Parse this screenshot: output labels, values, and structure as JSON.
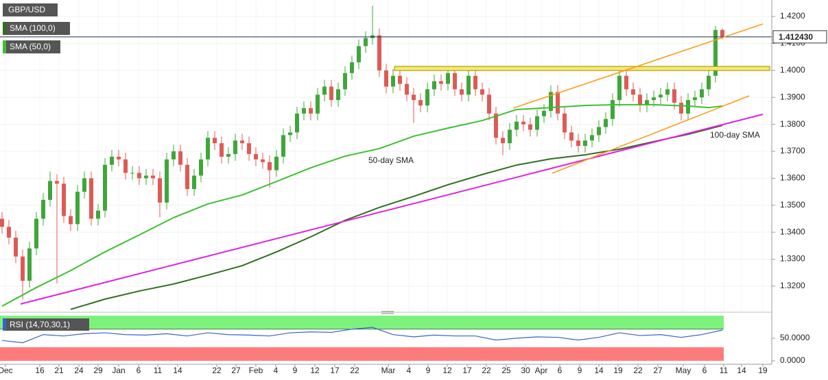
{
  "chart_data": [
    {
      "type": "candlestick",
      "symbol": "GBP/USD",
      "up_color": "#3fa63a",
      "down_color": "#de5b55",
      "xlim": [
        -0.3,
        112.2
      ],
      "ylim": [
        1.3106,
        1.4261
      ],
      "yticks": [
        {
          "value": 1.32,
          "label": "1.3200"
        },
        {
          "value": 1.33,
          "label": "1.3300"
        },
        {
          "value": 1.34,
          "label": "1.3400"
        },
        {
          "value": 1.35,
          "label": "1.3500"
        },
        {
          "value": 1.36,
          "label": "1.3600"
        },
        {
          "value": 1.37,
          "label": "1.3700"
        },
        {
          "value": 1.38,
          "label": "1.3800"
        },
        {
          "value": 1.39,
          "label": "1.3900"
        },
        {
          "value": 1.4,
          "label": "1.4000"
        },
        {
          "value": 1.41,
          "label": "1.4100"
        },
        {
          "value": 1.42,
          "label": "1.4200"
        }
      ],
      "xticks": [
        {
          "value": 0.5,
          "label": "Dec"
        },
        {
          "value": 5.5,
          "label": "16"
        },
        {
          "value": 8.3,
          "label": "21"
        },
        {
          "value": 11.2,
          "label": "24"
        },
        {
          "value": 14,
          "label": "29"
        },
        {
          "value": 17,
          "label": "Jan"
        },
        {
          "value": 19.9,
          "label": "6"
        },
        {
          "value": 22.7,
          "label": "11"
        },
        {
          "value": 25.6,
          "label": "14"
        },
        {
          "value": 31.3,
          "label": "22"
        },
        {
          "value": 34.1,
          "label": "27"
        },
        {
          "value": 37,
          "label": "Feb"
        },
        {
          "value": 39.9,
          "label": "4"
        },
        {
          "value": 42.7,
          "label": "9"
        },
        {
          "value": 45.6,
          "label": "12"
        },
        {
          "value": 48.5,
          "label": "17"
        },
        {
          "value": 51.4,
          "label": "22"
        },
        {
          "value": 56.3,
          "label": "Mar"
        },
        {
          "value": 59.3,
          "label": "4"
        },
        {
          "value": 62.1,
          "label": "9"
        },
        {
          "value": 64.9,
          "label": "12"
        },
        {
          "value": 67.8,
          "label": "17"
        },
        {
          "value": 70.6,
          "label": "22"
        },
        {
          "value": 73.5,
          "label": "25"
        },
        {
          "value": 76.3,
          "label": "30"
        },
        {
          "value": 78.6,
          "label": "Apr"
        },
        {
          "value": 81.3,
          "label": "6"
        },
        {
          "value": 84.2,
          "label": "9"
        },
        {
          "value": 87,
          "label": "14"
        },
        {
          "value": 89.8,
          "label": "19"
        },
        {
          "value": 92.7,
          "label": "22"
        },
        {
          "value": 95.6,
          "label": "27"
        },
        {
          "value": 99.3,
          "label": "May"
        },
        {
          "value": 102.4,
          "label": "6"
        },
        {
          "value": 105.2,
          "label": "11"
        },
        {
          "value": 107.8,
          "label": "14"
        },
        {
          "value": 110.9,
          "label": "19"
        }
      ],
      "last_price": {
        "value": 1.41243,
        "label": "1.412430"
      },
      "ohlc": [
        [
          1.345,
          1.3475,
          1.3395,
          1.342
        ],
        [
          1.342,
          1.3445,
          1.3355,
          1.338
        ],
        [
          1.338,
          1.3405,
          1.3285,
          1.331
        ],
        [
          1.331,
          1.3335,
          1.315,
          1.322
        ],
        [
          1.322,
          1.3365,
          1.3195,
          1.334
        ],
        [
          1.334,
          1.3475,
          1.3315,
          1.345
        ],
        [
          1.345,
          1.3545,
          1.3425,
          1.352
        ],
        [
          1.352,
          1.3625,
          1.3495,
          1.359
        ],
        [
          1.359,
          1.3615,
          1.321,
          1.358
        ],
        [
          1.358,
          1.3605,
          1.3435,
          1.346
        ],
        [
          1.346,
          1.3485,
          1.3405,
          1.343
        ],
        [
          1.343,
          1.3575,
          1.3405,
          1.355
        ],
        [
          1.355,
          1.3625,
          1.3525,
          1.36
        ],
        [
          1.36,
          1.3625,
          1.3425,
          1.345
        ],
        [
          1.345,
          1.3505,
          1.3425,
          1.348
        ],
        [
          1.348,
          1.3675,
          1.3455,
          1.365
        ],
        [
          1.365,
          1.3705,
          1.3625,
          1.368
        ],
        [
          1.368,
          1.3705,
          1.3645,
          1.367
        ],
        [
          1.367,
          1.3695,
          1.3595,
          1.362
        ],
        [
          1.362,
          1.3645,
          1.3595,
          1.362
        ],
        [
          1.362,
          1.3645,
          1.3575,
          1.36
        ],
        [
          1.36,
          1.3635,
          1.3575,
          1.361
        ],
        [
          1.361,
          1.3635,
          1.3575,
          1.36
        ],
        [
          1.36,
          1.3625,
          1.3455,
          1.351
        ],
        [
          1.351,
          1.3695,
          1.3485,
          1.367
        ],
        [
          1.367,
          1.3725,
          1.3645,
          1.37
        ],
        [
          1.37,
          1.3725,
          1.3625,
          1.365
        ],
        [
          1.365,
          1.3675,
          1.3535,
          1.356
        ],
        [
          1.356,
          1.3635,
          1.3535,
          1.361
        ],
        [
          1.361,
          1.3695,
          1.3585,
          1.367
        ],
        [
          1.367,
          1.3775,
          1.3645,
          1.375
        ],
        [
          1.375,
          1.3775,
          1.3705,
          1.373
        ],
        [
          1.373,
          1.3755,
          1.3655,
          1.368
        ],
        [
          1.368,
          1.3715,
          1.3655,
          1.369
        ],
        [
          1.369,
          1.3765,
          1.3665,
          1.374
        ],
        [
          1.374,
          1.3765,
          1.3705,
          1.373
        ],
        [
          1.373,
          1.3755,
          1.3665,
          1.369
        ],
        [
          1.369,
          1.3715,
          1.3645,
          1.367
        ],
        [
          1.367,
          1.3695,
          1.3635,
          1.366
        ],
        [
          1.366,
          1.3685,
          1.3565,
          1.363
        ],
        [
          1.363,
          1.3705,
          1.3605,
          1.368
        ],
        [
          1.368,
          1.3785,
          1.3655,
          1.376
        ],
        [
          1.376,
          1.3795,
          1.3735,
          1.377
        ],
        [
          1.377,
          1.3865,
          1.3745,
          1.384
        ],
        [
          1.384,
          1.3885,
          1.3815,
          1.386
        ],
        [
          1.386,
          1.3885,
          1.3815,
          1.384
        ],
        [
          1.384,
          1.3935,
          1.3815,
          1.391
        ],
        [
          1.391,
          1.3965,
          1.3885,
          1.394
        ],
        [
          1.394,
          1.3965,
          1.3865,
          1.389
        ],
        [
          1.389,
          1.3955,
          1.3865,
          1.393
        ],
        [
          1.393,
          1.4015,
          1.3905,
          1.399
        ],
        [
          1.399,
          1.4055,
          1.3965,
          1.403
        ],
        [
          1.403,
          1.4115,
          1.4005,
          1.409
        ],
        [
          1.409,
          1.4145,
          1.4065,
          1.412
        ],
        [
          1.412,
          1.424,
          1.4095,
          1.413
        ],
        [
          1.413,
          1.4155,
          1.3975,
          1.4
        ],
        [
          1.4,
          1.4025,
          1.3915,
          1.394
        ],
        [
          1.394,
          1.4005,
          1.3915,
          1.398
        ],
        [
          1.398,
          1.4005,
          1.3925,
          1.395
        ],
        [
          1.395,
          1.3975,
          1.3885,
          1.391
        ],
        [
          1.391,
          1.3935,
          1.3805,
          1.389
        ],
        [
          1.389,
          1.3915,
          1.3845,
          1.387
        ],
        [
          1.387,
          1.3955,
          1.3845,
          1.393
        ],
        [
          1.393,
          1.3985,
          1.3905,
          1.396
        ],
        [
          1.396,
          1.3985,
          1.3925,
          1.395
        ],
        [
          1.395,
          1.4015,
          1.3925,
          1.399
        ],
        [
          1.399,
          1.4015,
          1.3905,
          1.393
        ],
        [
          1.393,
          1.3955,
          1.3885,
          1.391
        ],
        [
          1.391,
          1.4005,
          1.3885,
          1.398
        ],
        [
          1.398,
          1.4005,
          1.3905,
          1.393
        ],
        [
          1.393,
          1.3955,
          1.3885,
          1.391
        ],
        [
          1.391,
          1.3935,
          1.3815,
          1.384
        ],
        [
          1.384,
          1.3865,
          1.3725,
          1.375
        ],
        [
          1.375,
          1.3775,
          1.3685,
          1.373
        ],
        [
          1.373,
          1.3805,
          1.3705,
          1.378
        ],
        [
          1.378,
          1.3835,
          1.3755,
          1.381
        ],
        [
          1.381,
          1.3835,
          1.3775,
          1.38
        ],
        [
          1.38,
          1.3825,
          1.3755,
          1.378
        ],
        [
          1.378,
          1.3855,
          1.3755,
          1.383
        ],
        [
          1.383,
          1.3875,
          1.3805,
          1.385
        ],
        [
          1.385,
          1.3945,
          1.3825,
          1.392
        ],
        [
          1.392,
          1.3945,
          1.3815,
          1.384
        ],
        [
          1.384,
          1.3865,
          1.3745,
          1.377
        ],
        [
          1.377,
          1.3795,
          1.3715,
          1.374
        ],
        [
          1.374,
          1.3765,
          1.3695,
          1.372
        ],
        [
          1.372,
          1.3765,
          1.3695,
          1.374
        ],
        [
          1.374,
          1.3785,
          1.3715,
          1.376
        ],
        [
          1.376,
          1.3815,
          1.3735,
          1.379
        ],
        [
          1.379,
          1.3845,
          1.3765,
          1.382
        ],
        [
          1.382,
          1.3915,
          1.3795,
          1.389
        ],
        [
          1.389,
          1.4005,
          1.3865,
          1.398
        ],
        [
          1.398,
          1.4005,
          1.3905,
          1.393
        ],
        [
          1.393,
          1.3955,
          1.3885,
          1.391
        ],
        [
          1.391,
          1.3935,
          1.3845,
          1.387
        ],
        [
          1.387,
          1.3915,
          1.3845,
          1.389
        ],
        [
          1.389,
          1.3925,
          1.3865,
          1.39
        ],
        [
          1.39,
          1.3935,
          1.3875,
          1.391
        ],
        [
          1.391,
          1.3955,
          1.3885,
          1.393
        ],
        [
          1.393,
          1.3955,
          1.3855,
          1.388
        ],
        [
          1.388,
          1.3905,
          1.3815,
          1.384
        ],
        [
          1.384,
          1.3915,
          1.3815,
          1.389
        ],
        [
          1.389,
          1.3925,
          1.3865,
          1.39
        ],
        [
          1.39,
          1.3955,
          1.3875,
          1.393
        ],
        [
          1.393,
          1.4005,
          1.3905,
          1.398
        ],
        [
          1.398,
          1.4165,
          1.3955,
          1.415
        ],
        [
          1.415,
          1.4155,
          1.4115,
          1.41243
        ]
      ],
      "series": [
        {
          "name": "SMA (100,0)",
          "color": "#2f6d1f",
          "x": [
            10,
            15,
            20,
            25,
            30,
            35,
            40,
            45,
            50,
            55,
            60,
            65,
            70,
            75,
            80,
            85,
            90,
            95,
            100,
            105
          ],
          "values": [
            1.3114,
            1.3152,
            1.3182,
            1.3208,
            1.3241,
            1.3276,
            1.3327,
            1.3383,
            1.3444,
            1.3492,
            1.3533,
            1.3576,
            1.3614,
            1.3649,
            1.3672,
            1.3687,
            1.3708,
            1.3736,
            1.3763,
            1.3796
          ]
        },
        {
          "name": "SMA (50,0)",
          "color": "#3cbf2f",
          "x": [
            0,
            5,
            10,
            15,
            20,
            25,
            30,
            35,
            40,
            45,
            50,
            55,
            60,
            65,
            70,
            75,
            80,
            85,
            90,
            95,
            100,
            103,
            105
          ],
          "values": [
            1.3126,
            1.3195,
            1.3258,
            1.3327,
            1.339,
            1.3454,
            1.3505,
            1.3538,
            1.3588,
            1.3639,
            1.3682,
            1.371,
            1.3756,
            1.3786,
            1.3814,
            1.3855,
            1.3862,
            1.387,
            1.3873,
            1.3873,
            1.3868,
            1.3862,
            1.3868
          ]
        }
      ],
      "annotations": [
        "50-day SMA",
        "100-day SMA"
      ]
    },
    {
      "type": "line",
      "title": "RSI (14,70,30,1)",
      "color": "#3a5fcd",
      "ylim": [
        0,
        100
      ],
      "yticks": [
        {
          "value": 0,
          "label": "0.0000"
        },
        {
          "value": 50,
          "label": "50.0000"
        }
      ],
      "overbought": 70,
      "oversold": 30,
      "overbought_color": "#7cf27c",
      "oversold_color": "#ff7b7b",
      "x": [
        0,
        3,
        6,
        9,
        12,
        15,
        18,
        21,
        24,
        27,
        30,
        33,
        36,
        39,
        42,
        45,
        48,
        51,
        54,
        57,
        60,
        63,
        66,
        69,
        72,
        75,
        78,
        81,
        84,
        87,
        90,
        93,
        96,
        99,
        102,
        105
      ],
      "values": [
        45,
        40,
        58,
        55,
        60,
        62,
        58,
        57,
        60,
        55,
        62,
        58,
        57,
        55,
        62,
        64,
        63,
        70,
        74,
        58,
        53,
        57,
        55,
        55,
        46,
        50,
        53,
        52,
        46,
        52,
        62,
        56,
        58,
        52,
        58,
        68
      ]
    }
  ]
}
